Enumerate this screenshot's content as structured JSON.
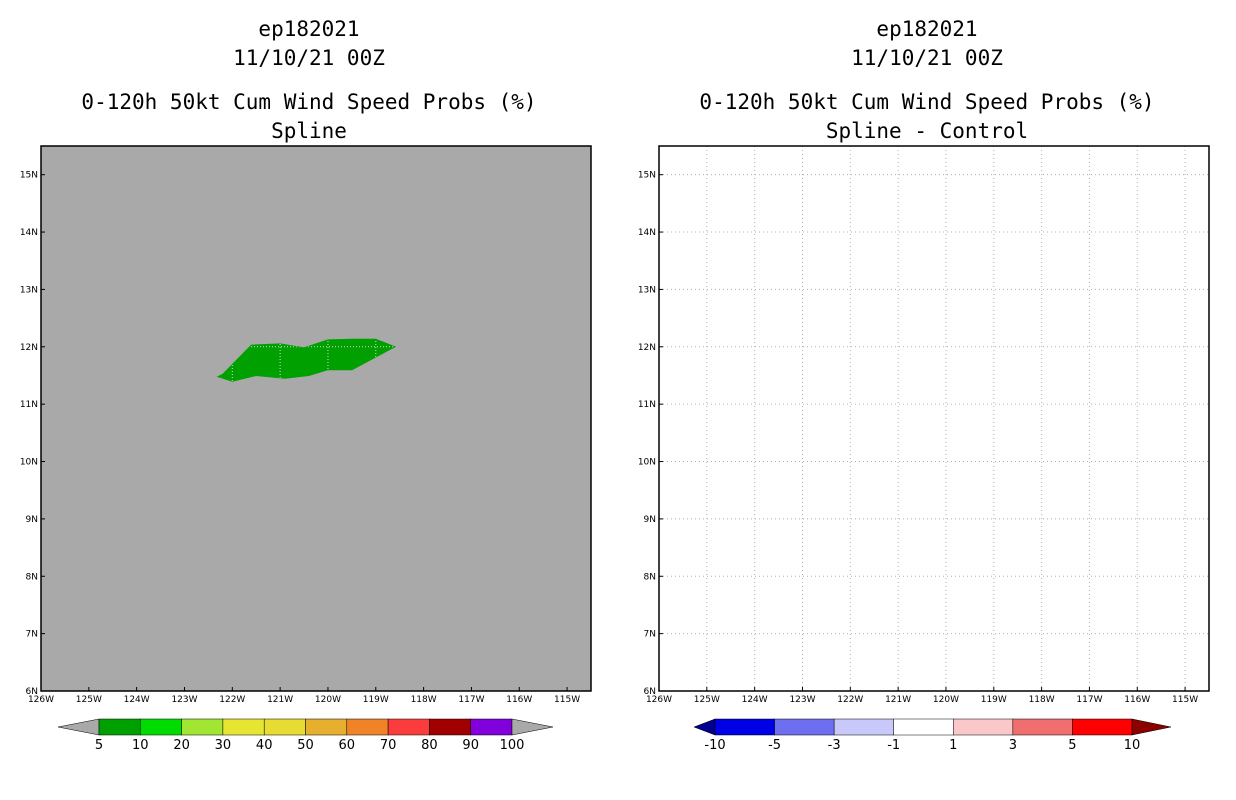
{
  "colors": {
    "land_gray": "#a9a9a9",
    "grid_gray": "#b0b0b0",
    "frame": "#000000"
  },
  "chart_data": [
    {
      "type": "heatmap",
      "title": [
        "ep182021",
        "11/10/21 00Z",
        "0-120h 50kt Cum Wind Speed Probs (%)",
        "Spline"
      ],
      "x_ticks": [
        "126W",
        "125W",
        "124W",
        "123W",
        "122W",
        "121W",
        "120W",
        "119W",
        "118W",
        "117W",
        "116W",
        "115W"
      ],
      "y_ticks": [
        "6N",
        "7N",
        "8N",
        "9N",
        "10N",
        "11N",
        "12N",
        "13N",
        "14N",
        "15N"
      ],
      "xlim": [
        -126,
        -114.5
      ],
      "ylim": [
        6,
        15.5
      ],
      "background_color": "#a9a9a9",
      "grid": "inside shaded region only",
      "regions": [
        {
          "label": "5-10",
          "color": "#00a000",
          "polygon": [
            [
              -122.2,
              11.52
            ],
            [
              -121.6,
              12.03
            ],
            [
              -121.0,
              12.05
            ],
            [
              -120.5,
              11.98
            ],
            [
              -120.0,
              12.12
            ],
            [
              -119.5,
              12.13
            ],
            [
              -119.0,
              12.13
            ],
            [
              -118.6,
              12.0
            ],
            [
              -119.5,
              11.6
            ],
            [
              -120.0,
              11.6
            ],
            [
              -120.4,
              11.5
            ],
            [
              -120.9,
              11.45
            ],
            [
              -121.5,
              11.5
            ],
            [
              -122.0,
              11.4
            ],
            [
              -122.3,
              11.48
            ]
          ]
        }
      ],
      "colorbar": {
        "labels": [
          "5",
          "10",
          "20",
          "30",
          "40",
          "50",
          "60",
          "70",
          "80",
          "90",
          "100"
        ],
        "colors": [
          "#00a000",
          "#00dc00",
          "#a0e632",
          "#e6e632",
          "#e6dc32",
          "#e6af2d",
          "#f08228",
          "#fa3c3c",
          "#a00000",
          "#8200dc"
        ],
        "end_colors": [
          "#a9a9a9",
          "#a9a9a9"
        ]
      }
    },
    {
      "type": "heatmap",
      "title": [
        "ep182021",
        "11/10/21 00Z",
        "0-120h 50kt Cum Wind Speed Probs (%)",
        "Spline - Control"
      ],
      "x_ticks": [
        "126W",
        "125W",
        "124W",
        "123W",
        "122W",
        "121W",
        "120W",
        "119W",
        "118W",
        "117W",
        "116W",
        "115W"
      ],
      "y_ticks": [
        "6N",
        "7N",
        "8N",
        "9N",
        "10N",
        "11N",
        "12N",
        "13N",
        "14N",
        "15N"
      ],
      "xlim": [
        -126,
        -114.5
      ],
      "ylim": [
        6,
        15.5
      ],
      "background_color": "#ffffff",
      "grid": "dotted full",
      "regions": [],
      "colorbar": {
        "labels": [
          "-10",
          "-5",
          "-3",
          "-1",
          "1",
          "3",
          "5",
          "10"
        ],
        "colors": [
          "#0000e6",
          "#6e6ef0",
          "#c8c8fa",
          "#ffffff",
          "#fac8c8",
          "#f06e6e",
          "#ff0000"
        ],
        "end_colors": [
          "#00008c",
          "#8c0000"
        ]
      }
    }
  ]
}
